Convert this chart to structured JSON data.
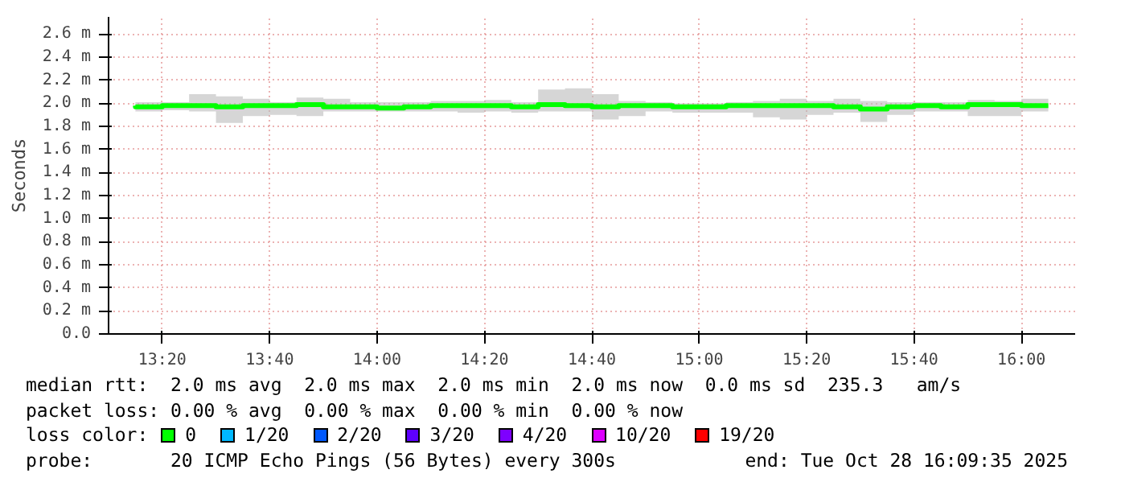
{
  "chart_data": {
    "type": "line",
    "ylabel": "Seconds",
    "legend_title": "loss color:",
    "legend": "bottom",
    "grid": true,
    "line_style": "solid",
    "marker": "none",
    "x": [
      "2025-10-28T13:15",
      "2025-10-28T13:20",
      "2025-10-28T13:25",
      "2025-10-28T13:30",
      "2025-10-28T13:35",
      "2025-10-28T13:40",
      "2025-10-28T13:45",
      "2025-10-28T13:50",
      "2025-10-28T13:55",
      "2025-10-28T14:00",
      "2025-10-28T14:05",
      "2025-10-28T14:10",
      "2025-10-28T14:15",
      "2025-10-28T14:20",
      "2025-10-28T14:25",
      "2025-10-28T14:30",
      "2025-10-28T14:35",
      "2025-10-28T14:40",
      "2025-10-28T14:45",
      "2025-10-28T14:50",
      "2025-10-28T14:55",
      "2025-10-28T15:00",
      "2025-10-28T15:05",
      "2025-10-28T15:10",
      "2025-10-28T15:15",
      "2025-10-28T15:20",
      "2025-10-28T15:25",
      "2025-10-28T15:30",
      "2025-10-28T15:35",
      "2025-10-28T15:40",
      "2025-10-28T15:45",
      "2025-10-28T15:50",
      "2025-10-28T15:55",
      "2025-10-28T16:00",
      "2025-10-28T16:05"
    ],
    "series": [
      {
        "name": "0",
        "color": "#00ff00",
        "values": [
          1.98,
          1.97,
          1.98,
          1.98,
          1.97,
          1.98,
          1.98,
          1.99,
          1.97,
          1.97,
          1.96,
          1.97,
          1.98,
          1.98,
          1.98,
          1.97,
          1.99,
          1.98,
          1.97,
          1.98,
          1.98,
          1.97,
          1.97,
          1.98,
          1.98,
          1.98,
          1.98,
          1.97,
          1.95,
          1.97,
          1.98,
          1.97,
          1.99,
          1.99,
          1.98
        ],
        "lower": [
          1.94,
          1.93,
          1.94,
          1.93,
          1.83,
          1.89,
          1.9,
          1.89,
          1.93,
          1.93,
          1.93,
          1.93,
          1.93,
          1.92,
          1.93,
          1.92,
          1.93,
          1.93,
          1.86,
          1.89,
          1.93,
          1.92,
          1.92,
          1.92,
          1.88,
          1.86,
          1.9,
          1.92,
          1.84,
          1.9,
          1.93,
          1.93,
          1.89,
          1.89,
          1.93
        ],
        "upper": [
          2.04,
          2.01,
          2.01,
          2.08,
          2.06,
          2.04,
          2.01,
          2.05,
          2.04,
          2.01,
          2.01,
          2.01,
          2.02,
          2.02,
          2.03,
          2.01,
          2.12,
          2.13,
          2.08,
          2.02,
          2.01,
          2.0,
          2.0,
          2.01,
          2.02,
          2.04,
          2.02,
          2.04,
          2.02,
          2.01,
          2.01,
          2.01,
          2.03,
          2.02,
          2.04
        ]
      },
      {
        "name": "1/20",
        "color": "#00b8ff",
        "values": [
          null,
          null,
          null,
          null,
          null,
          null,
          null,
          null,
          null,
          null,
          null,
          null,
          null,
          null,
          null,
          null,
          null,
          null,
          null,
          null,
          null,
          null,
          null,
          null,
          null,
          null,
          null,
          null,
          null,
          null,
          null,
          null,
          null,
          null,
          null
        ]
      },
      {
        "name": "2/20",
        "color": "#0059ff",
        "values": [
          null,
          null,
          null,
          null,
          null,
          null,
          null,
          null,
          null,
          null,
          null,
          null,
          null,
          null,
          null,
          null,
          null,
          null,
          null,
          null,
          null,
          null,
          null,
          null,
          null,
          null,
          null,
          null,
          null,
          null,
          null,
          null,
          null,
          null,
          null
        ]
      },
      {
        "name": "3/20",
        "color": "#5e00ff",
        "values": [
          null,
          null,
          null,
          null,
          null,
          null,
          null,
          null,
          null,
          null,
          null,
          null,
          null,
          null,
          null,
          null,
          null,
          null,
          null,
          null,
          null,
          null,
          null,
          null,
          null,
          null,
          null,
          null,
          null,
          null,
          null,
          null,
          null,
          null,
          null
        ]
      },
      {
        "name": "4/20",
        "color": "#7e00ff",
        "values": [
          null,
          null,
          null,
          null,
          null,
          null,
          null,
          null,
          null,
          null,
          null,
          null,
          null,
          null,
          null,
          null,
          null,
          null,
          null,
          null,
          null,
          null,
          null,
          null,
          null,
          null,
          null,
          null,
          null,
          null,
          null,
          null,
          null,
          null,
          null
        ]
      },
      {
        "name": "10/20",
        "color": "#dd00ff",
        "values": [
          null,
          null,
          null,
          null,
          null,
          null,
          null,
          null,
          null,
          null,
          null,
          null,
          null,
          null,
          null,
          null,
          null,
          null,
          null,
          null,
          null,
          null,
          null,
          null,
          null,
          null,
          null,
          null,
          null,
          null,
          null,
          null,
          null,
          null,
          null
        ]
      },
      {
        "name": "19/20",
        "color": "#ff0000",
        "values": [
          null,
          null,
          null,
          null,
          null,
          null,
          null,
          null,
          null,
          null,
          null,
          null,
          null,
          null,
          null,
          null,
          null,
          null,
          null,
          null,
          null,
          null,
          null,
          null,
          null,
          null,
          null,
          null,
          null,
          null,
          null,
          null,
          null,
          null,
          null
        ]
      }
    ],
    "xlim": [
      "2025-10-28T13:10",
      "2025-10-28T16:10"
    ],
    "xticks": [
      {
        "value": "2025-10-28T13:20",
        "label": "13:20"
      },
      {
        "value": "2025-10-28T13:40",
        "label": "13:40"
      },
      {
        "value": "2025-10-28T14:00",
        "label": "14:00"
      },
      {
        "value": "2025-10-28T14:20",
        "label": "14:20"
      },
      {
        "value": "2025-10-28T14:40",
        "label": "14:40"
      },
      {
        "value": "2025-10-28T15:00",
        "label": "15:00"
      },
      {
        "value": "2025-10-28T15:20",
        "label": "15:20"
      },
      {
        "value": "2025-10-28T15:40",
        "label": "15:40"
      },
      {
        "value": "2025-10-28T16:00",
        "label": "16:00"
      }
    ],
    "ylim": [
      0,
      2.75
    ],
    "yticks": [
      {
        "value": 0,
        "label": "0.0"
      },
      {
        "value": 0.2,
        "label": "0.2 m"
      },
      {
        "value": 0.4,
        "label": "0.4 m"
      },
      {
        "value": 0.6,
        "label": "0.6 m"
      },
      {
        "value": 0.8,
        "label": "0.8 m"
      },
      {
        "value": 1.0,
        "label": "1.0 m"
      },
      {
        "value": 1.2,
        "label": "1.2 m"
      },
      {
        "value": 1.4,
        "label": "1.4 m"
      },
      {
        "value": 1.6,
        "label": "1.6 m"
      },
      {
        "value": 1.8,
        "label": "1.8 m"
      },
      {
        "value": 2.0,
        "label": "2.0 m"
      },
      {
        "value": 2.2,
        "label": "2.2 m"
      },
      {
        "value": 2.4,
        "label": "2.4 m"
      },
      {
        "value": 2.6,
        "label": "2.6 m"
      }
    ],
    "annotations": [
      "median rtt:  2.0 ms avg  2.0 ms max  2.0 ms min  2.0 ms now  0.0 ms sd  235.3   am/s",
      "packet loss: 0.00 % avg  0.00 % max  0.00 % min  0.00 % now",
      "probe:       20 ICMP Echo Pings (56 Bytes) every 300s",
      "end: Tue Oct 28 16:09:35 2025"
    ]
  }
}
